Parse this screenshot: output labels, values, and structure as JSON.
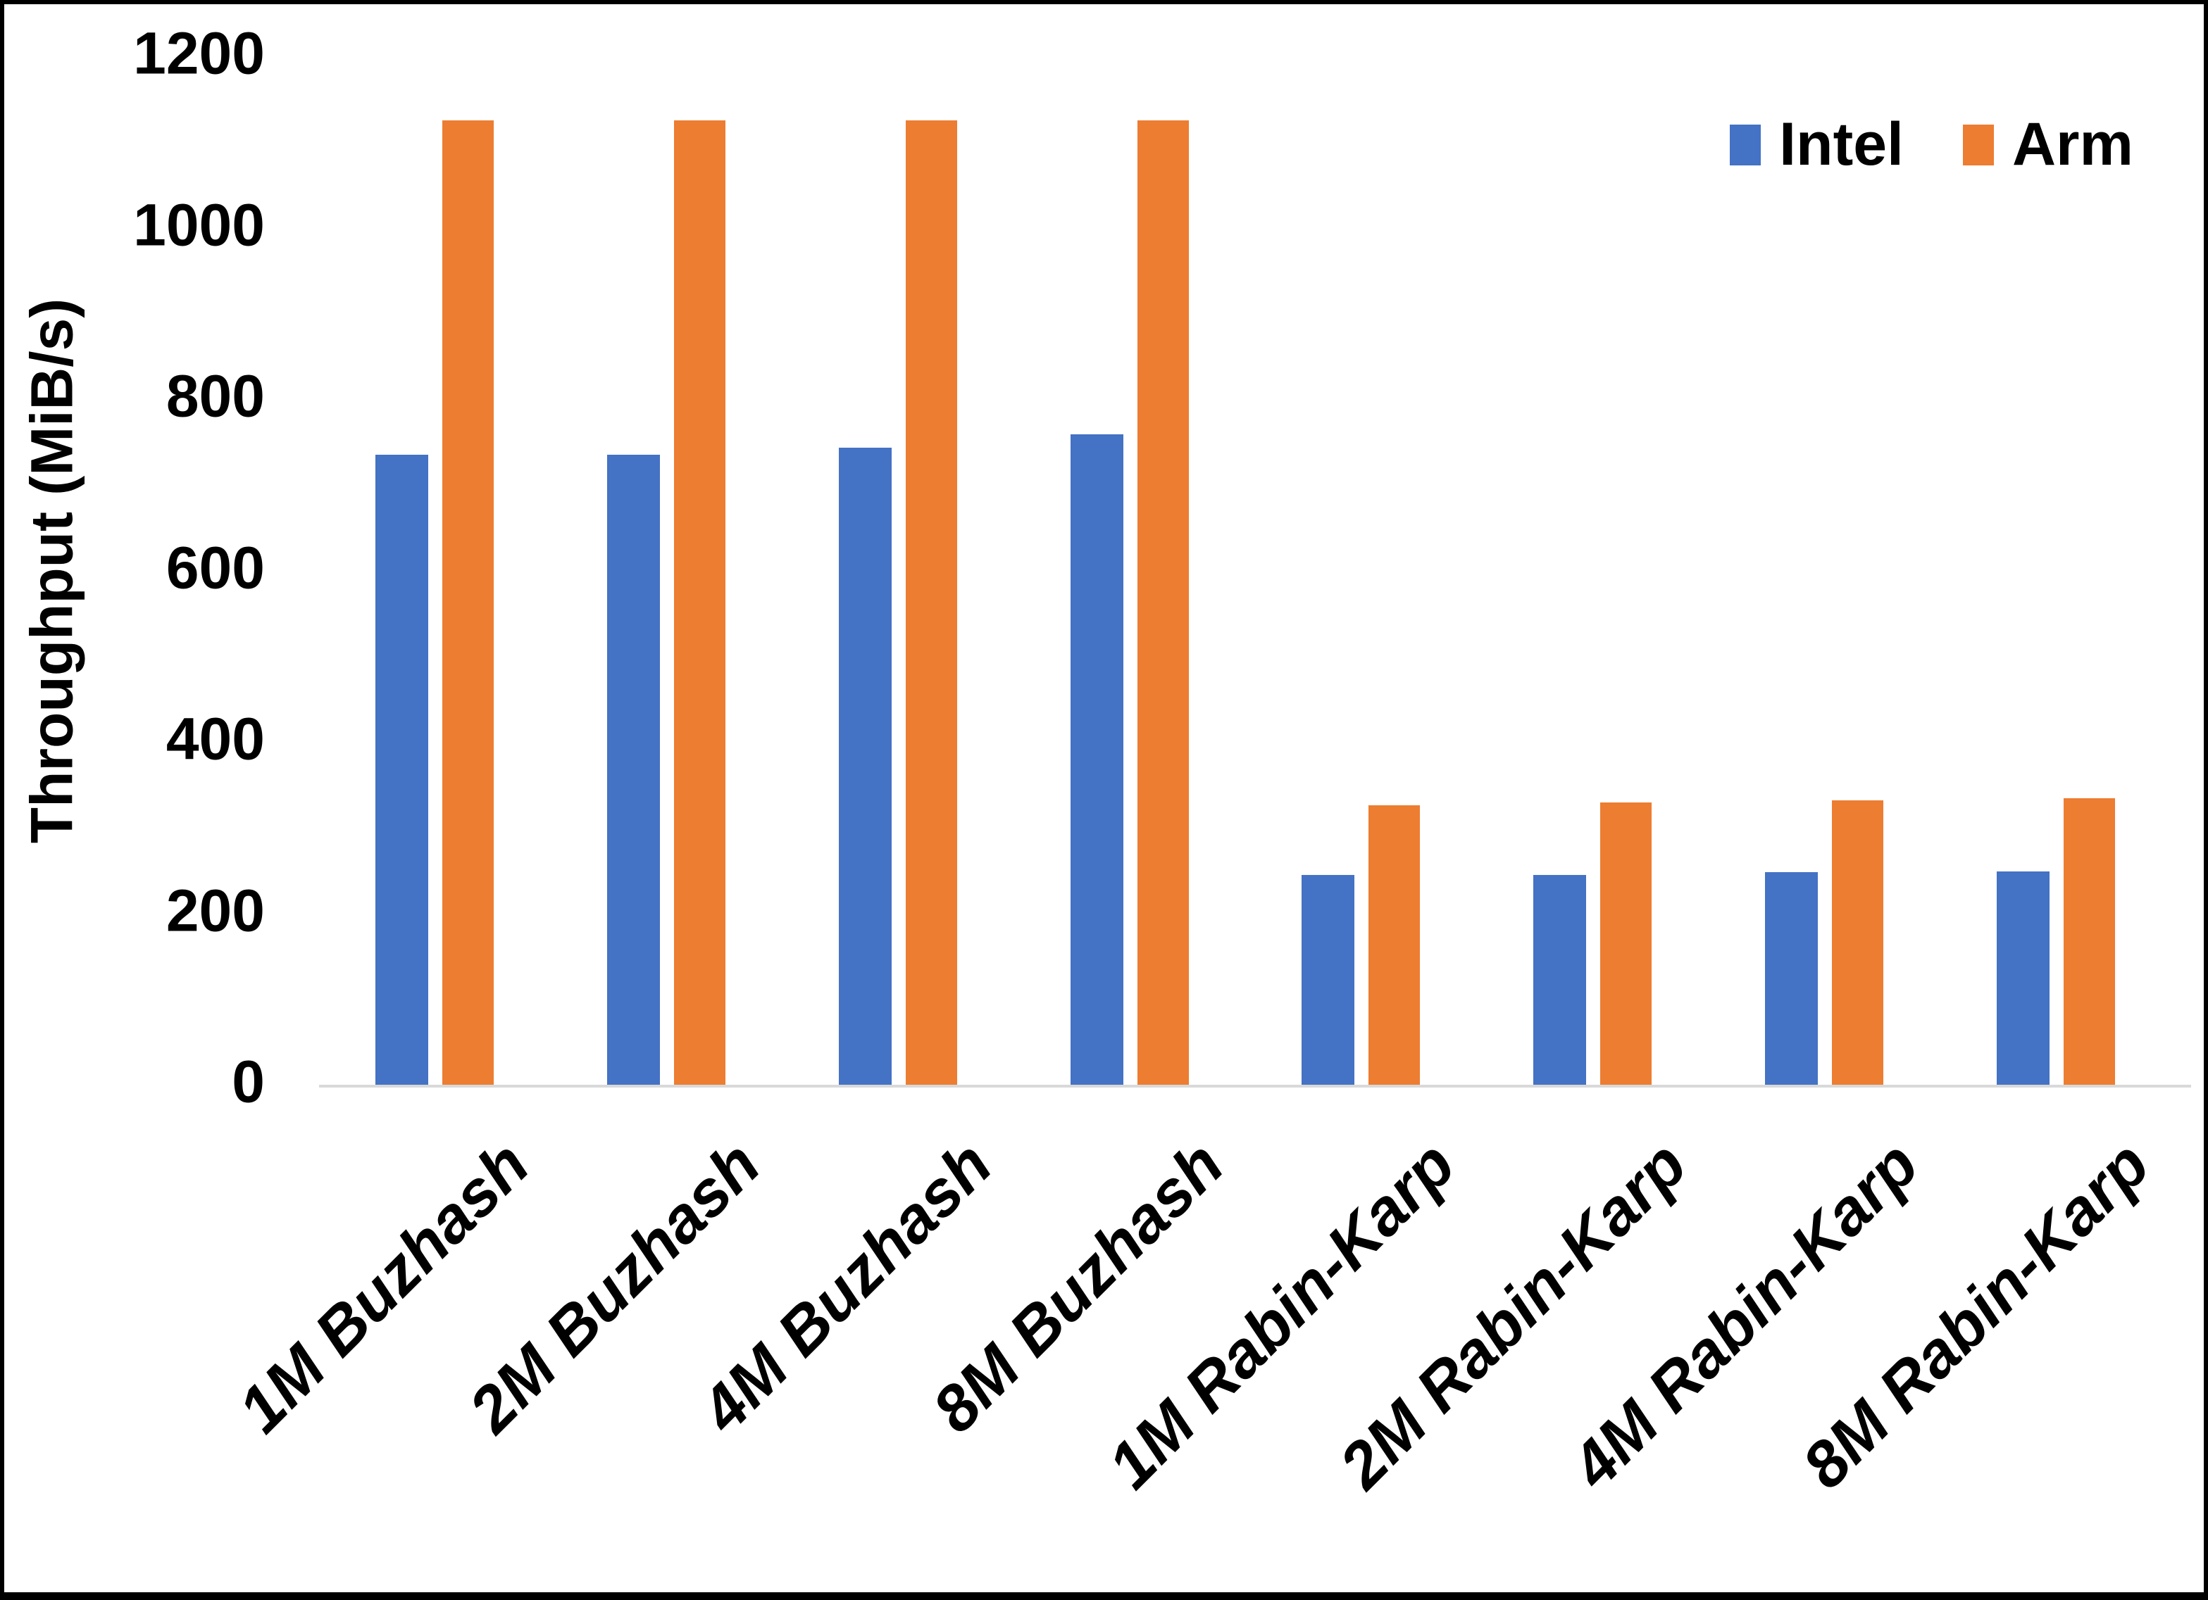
{
  "chart_data": {
    "type": "bar",
    "title": "",
    "xlabel": "",
    "ylabel": "Throughput (MiB/s)",
    "ylim": [
      0,
      1200
    ],
    "yticks": [
      0,
      200,
      400,
      600,
      800,
      1000,
      1200
    ],
    "grid": false,
    "legend_position": "top-right",
    "categories": [
      "1M Buzhash",
      "2M Buzhash",
      "4M Buzhash",
      "8M Buzhash",
      "1M Rabin-Karp",
      "2M Rabin-Karp",
      "4M Rabin-Karp",
      "8M Rabin-Karp"
    ],
    "series": [
      {
        "name": "Intel",
        "color": "#4472C4",
        "values": [
          735,
          735,
          743,
          759,
          245,
          245,
          248,
          249
        ]
      },
      {
        "name": "Arm",
        "color": "#ED7D31",
        "values": [
          1125,
          1125,
          1125,
          1125,
          326,
          329,
          332,
          334
        ]
      }
    ]
  },
  "colors": {
    "background": "#FFFFFF",
    "frame": "#000000",
    "axis_line": "#D9D9D9",
    "text": "#000000"
  }
}
